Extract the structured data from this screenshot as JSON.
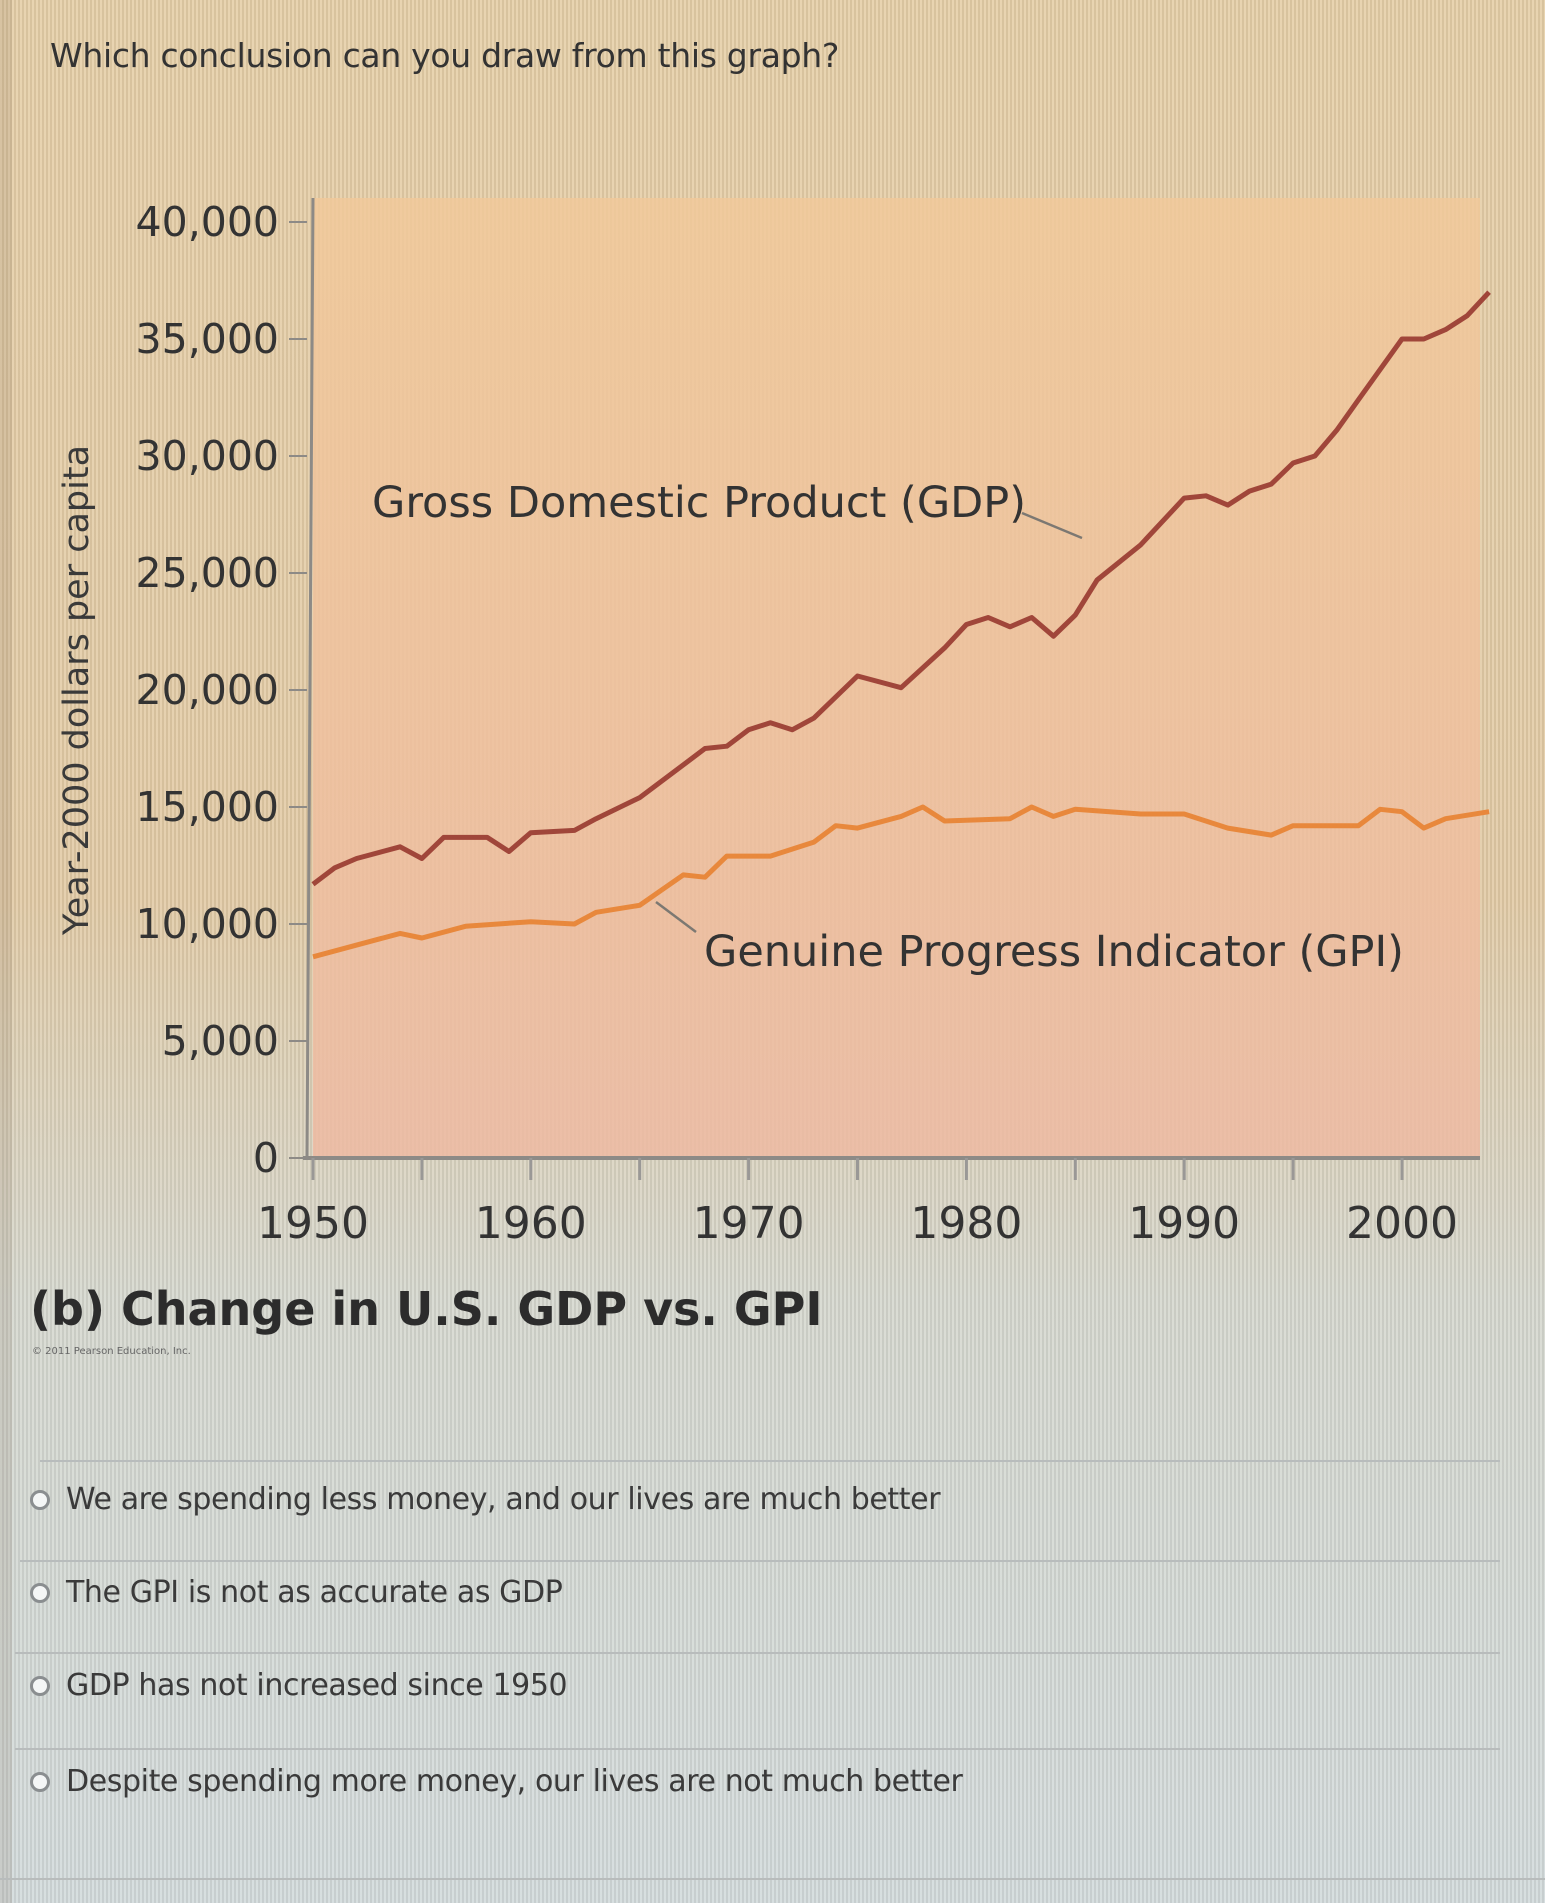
{
  "question": "Which conclusion can you draw from this graph?",
  "caption": "(b) Change in U.S. GDP vs. GPI",
  "copyright": "© 2011 Pearson Education, Inc.",
  "options": [
    {
      "label": "We are spending less money, and our lives are much better",
      "selected": false
    },
    {
      "label": "The GPI is not as accurate as GDP",
      "selected": false
    },
    {
      "label": "GDP has not increased since 1950",
      "selected": false
    },
    {
      "label": "Despite spending more money, our lives are not much better",
      "selected": false
    }
  ],
  "chart_data": {
    "type": "line",
    "title": "(b) Change in U.S. GDP vs. GPI",
    "xlabel": "",
    "ylabel": "Year-2000 dollars per capita",
    "xlim": [
      1950,
      2004
    ],
    "ylim": [
      0,
      40000
    ],
    "xticks": [
      1950,
      1960,
      1970,
      1980,
      1990,
      2000
    ],
    "xticks_minor_step": 5,
    "yticks": [
      0,
      5000,
      10000,
      15000,
      20000,
      25000,
      30000,
      35000,
      40000
    ],
    "ytick_labels": [
      "0",
      "5,000",
      "10,000",
      "15,000",
      "20,000",
      "25,000",
      "30,000",
      "35,000",
      "40,000"
    ],
    "grid": false,
    "legend": "inline annotations",
    "series": [
      {
        "name": "Gross Domestic Product (GDP)",
        "color": "#a0463a",
        "points": [
          [
            1950,
            11700
          ],
          [
            1951,
            12400
          ],
          [
            1952,
            12800
          ],
          [
            1954,
            13300
          ],
          [
            1955,
            12800
          ],
          [
            1956,
            13700
          ],
          [
            1958,
            13700
          ],
          [
            1959,
            13100
          ],
          [
            1960,
            13900
          ],
          [
            1962,
            14000
          ],
          [
            1963,
            14500
          ],
          [
            1965,
            15400
          ],
          [
            1967,
            16800
          ],
          [
            1968,
            17500
          ],
          [
            1969,
            17600
          ],
          [
            1970,
            18300
          ],
          [
            1971,
            18600
          ],
          [
            1972,
            18300
          ],
          [
            1973,
            18800
          ],
          [
            1975,
            20600
          ],
          [
            1977,
            20100
          ],
          [
            1979,
            21800
          ],
          [
            1980,
            22800
          ],
          [
            1981,
            23100
          ],
          [
            1982,
            22700
          ],
          [
            1983,
            23100
          ],
          [
            1984,
            22300
          ],
          [
            1985,
            23200
          ],
          [
            1986,
            24700
          ],
          [
            1988,
            26200
          ],
          [
            1990,
            28200
          ],
          [
            1991,
            28300
          ],
          [
            1992,
            27900
          ],
          [
            1993,
            28500
          ],
          [
            1994,
            28800
          ],
          [
            1995,
            29700
          ],
          [
            1996,
            30000
          ],
          [
            1997,
            31100
          ],
          [
            1998,
            32400
          ],
          [
            2000,
            35000
          ],
          [
            2001,
            35000
          ],
          [
            2002,
            35400
          ],
          [
            2003,
            36000
          ],
          [
            2004,
            37000
          ]
        ]
      },
      {
        "name": "Genuine Progress Indicator (GPI)",
        "color": "#e8883c",
        "points": [
          [
            1950,
            8600
          ],
          [
            1952,
            9100
          ],
          [
            1954,
            9600
          ],
          [
            1955,
            9400
          ],
          [
            1957,
            9900
          ],
          [
            1960,
            10100
          ],
          [
            1962,
            10000
          ],
          [
            1963,
            10500
          ],
          [
            1965,
            10800
          ],
          [
            1967,
            12100
          ],
          [
            1968,
            12000
          ],
          [
            1969,
            12900
          ],
          [
            1971,
            12900
          ],
          [
            1973,
            13500
          ],
          [
            1974,
            14200
          ],
          [
            1975,
            14100
          ],
          [
            1977,
            14600
          ],
          [
            1978,
            15000
          ],
          [
            1979,
            14400
          ],
          [
            1982,
            14500
          ],
          [
            1983,
            15000
          ],
          [
            1984,
            14600
          ],
          [
            1985,
            14900
          ],
          [
            1988,
            14700
          ],
          [
            1990,
            14700
          ],
          [
            1992,
            14100
          ],
          [
            1994,
            13800
          ],
          [
            1995,
            14200
          ],
          [
            1998,
            14200
          ],
          [
            1999,
            14900
          ],
          [
            2000,
            14800
          ],
          [
            2001,
            14100
          ],
          [
            2002,
            14500
          ],
          [
            2004,
            14800
          ]
        ]
      }
    ],
    "annotations": [
      {
        "text": "Gross Domestic Product (GDP)",
        "series": "GDP",
        "leader_year": 1985
      },
      {
        "text": "Genuine Progress Indicator (GPI)",
        "series": "GPI",
        "leader_year": 1965
      }
    ]
  }
}
